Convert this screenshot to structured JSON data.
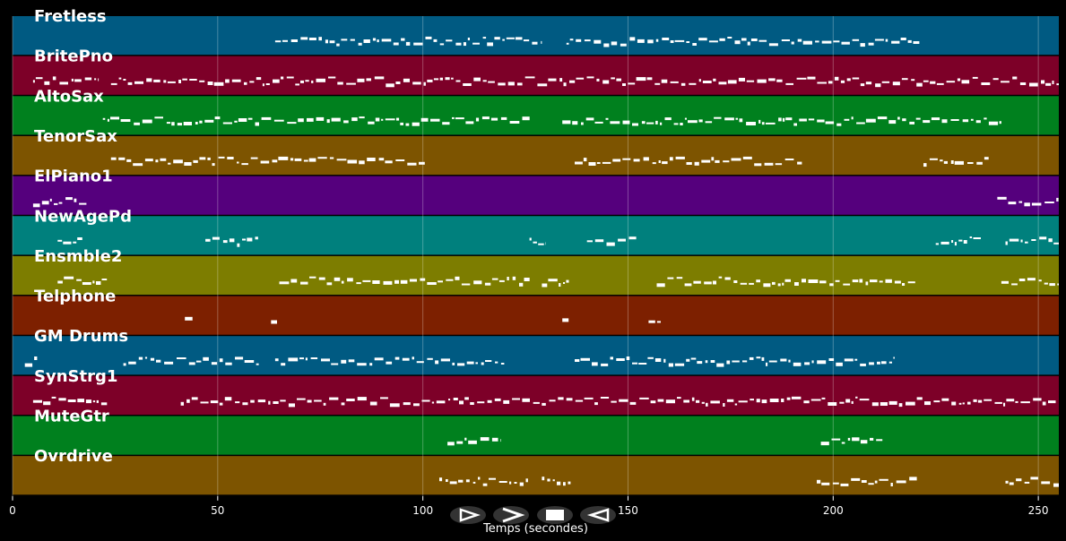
{
  "chart_data": {
    "type": "piano-roll",
    "xlabel": "Temps (secondes)",
    "xlim": [
      0,
      255
    ],
    "xticks": [
      0,
      50,
      100,
      150,
      200,
      250
    ],
    "grid": true,
    "tracks": [
      {
        "name": "Fretless",
        "color": "#005a82",
        "segments": [
          [
            64,
            129
          ],
          [
            135,
            221
          ]
        ]
      },
      {
        "name": "BritePno",
        "color": "#7d0028",
        "segments": [
          [
            5,
            21
          ],
          [
            24,
            255
          ]
        ]
      },
      {
        "name": "AltoSax",
        "color": "#00801e",
        "segments": [
          [
            22,
            126
          ],
          [
            134,
            241
          ]
        ]
      },
      {
        "name": "TenorSax",
        "color": "#7d5400",
        "segments": [
          [
            24,
            101
          ],
          [
            137,
            193
          ],
          [
            222,
            238
          ]
        ]
      },
      {
        "name": "ElPiano1",
        "color": "#55007d",
        "segments": [
          [
            5,
            18
          ],
          [
            240,
            255
          ]
        ]
      },
      {
        "name": "NewAgePd",
        "color": "#00807d",
        "segments": [
          [
            11,
            17
          ],
          [
            47,
            60
          ],
          [
            126,
            130
          ],
          [
            140,
            152
          ],
          [
            225,
            236
          ],
          [
            242,
            255
          ]
        ]
      },
      {
        "name": "Ensmble2",
        "color": "#7d7d00",
        "segments": [
          [
            11,
            23
          ],
          [
            65,
            126
          ],
          [
            129,
            136
          ],
          [
            157,
            220
          ],
          [
            241,
            255
          ]
        ]
      },
      {
        "name": "Telphone",
        "color": "#7d2000",
        "segments": [
          [
            42,
            44
          ],
          [
            63,
            65
          ],
          [
            134,
            136
          ],
          [
            155,
            158
          ]
        ]
      },
      {
        "name": "GM Drums",
        "color": "#005a82",
        "segments": [
          [
            3,
            6
          ],
          [
            27,
            60
          ],
          [
            64,
            120
          ],
          [
            137,
            215
          ]
        ]
      },
      {
        "name": "SynStrg1",
        "color": "#7d0028",
        "segments": [
          [
            5,
            23
          ],
          [
            41,
            255
          ]
        ]
      },
      {
        "name": "MuteGtr",
        "color": "#00801e",
        "segments": [
          [
            106,
            119
          ],
          [
            197,
            212
          ]
        ]
      },
      {
        "name": "Ovrdrive",
        "color": "#7d5400",
        "segments": [
          [
            104,
            126
          ],
          [
            129,
            136
          ],
          [
            196,
            221
          ],
          [
            242,
            255
          ]
        ]
      }
    ]
  },
  "controls": [
    {
      "name": "play-button",
      "icon": "play-icon"
    },
    {
      "name": "fast-forward-button",
      "icon": "fast-forward-icon"
    },
    {
      "name": "stop-button",
      "icon": "stop-icon"
    },
    {
      "name": "rewind-button",
      "icon": "rewind-icon"
    }
  ]
}
